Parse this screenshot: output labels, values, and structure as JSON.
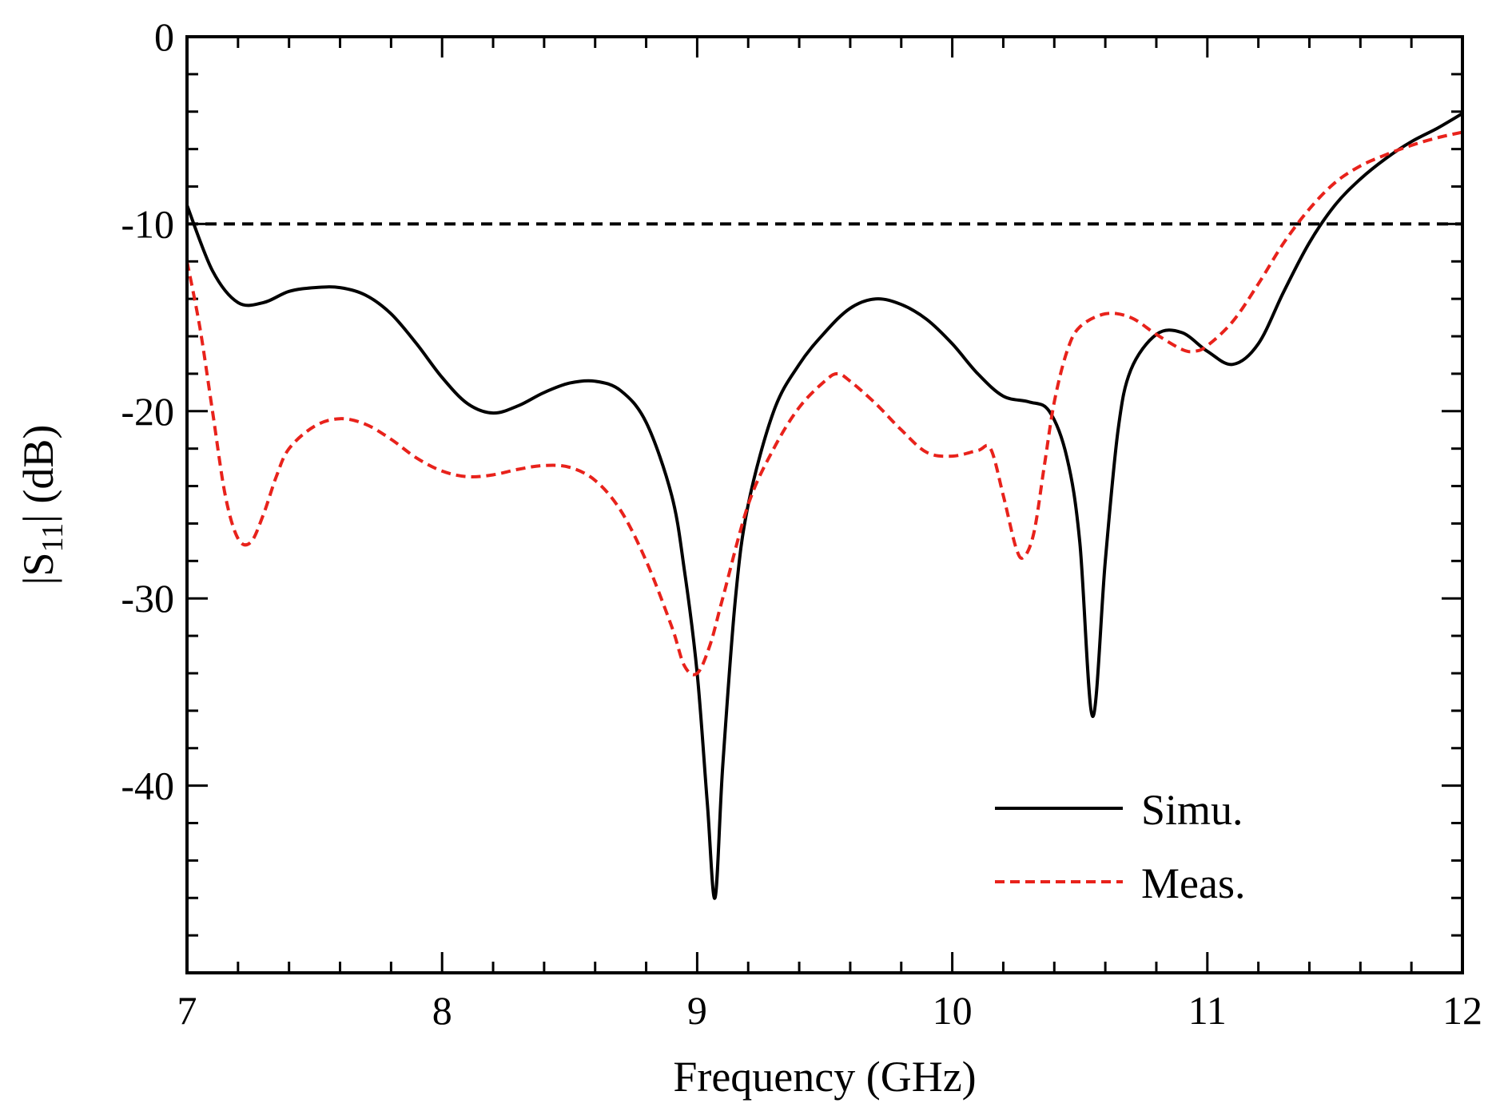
{
  "chart_data": {
    "type": "line",
    "title": "",
    "xlabel": "Frequency (GHz)",
    "ylabel": {
      "prefix": "|S",
      "subscript": "11",
      "suffix": "| (dB)"
    },
    "xlim": [
      7,
      12
    ],
    "ylim": [
      -50,
      0
    ],
    "xticks": [
      7,
      8,
      9,
      10,
      11,
      12
    ],
    "yticks": [
      0,
      -10,
      -20,
      -30,
      -40
    ],
    "xtick_labels": [
      "7",
      "8",
      "9",
      "10",
      "11",
      "12"
    ],
    "ytick_labels": [
      "0",
      "-10",
      "-20",
      "-30",
      "-40"
    ],
    "grid": false,
    "legend_position": "bottom-right",
    "reference_line": {
      "y": -10,
      "color": "#000000",
      "style": "dashed"
    },
    "series": [
      {
        "name": "Simu.",
        "color": "#000000",
        "style": "solid",
        "points": [
          [
            7.0,
            -9.0
          ],
          [
            7.1,
            -12.5
          ],
          [
            7.2,
            -14.2
          ],
          [
            7.3,
            -14.2
          ],
          [
            7.4,
            -13.6
          ],
          [
            7.5,
            -13.4
          ],
          [
            7.6,
            -13.4
          ],
          [
            7.7,
            -13.8
          ],
          [
            7.8,
            -14.8
          ],
          [
            7.9,
            -16.4
          ],
          [
            8.0,
            -18.2
          ],
          [
            8.1,
            -19.6
          ],
          [
            8.2,
            -20.1
          ],
          [
            8.3,
            -19.7
          ],
          [
            8.4,
            -19.0
          ],
          [
            8.5,
            -18.5
          ],
          [
            8.6,
            -18.4
          ],
          [
            8.7,
            -18.9
          ],
          [
            8.8,
            -20.6
          ],
          [
            8.9,
            -24.5
          ],
          [
            8.95,
            -28.5
          ],
          [
            9.0,
            -34.0
          ],
          [
            9.04,
            -41.0
          ],
          [
            9.07,
            -46.0
          ],
          [
            9.1,
            -39.0
          ],
          [
            9.15,
            -30.0
          ],
          [
            9.2,
            -25.0
          ],
          [
            9.3,
            -20.0
          ],
          [
            9.4,
            -17.5
          ],
          [
            9.5,
            -15.8
          ],
          [
            9.6,
            -14.5
          ],
          [
            9.7,
            -14.0
          ],
          [
            9.8,
            -14.3
          ],
          [
            9.9,
            -15.1
          ],
          [
            10.0,
            -16.4
          ],
          [
            10.1,
            -18.0
          ],
          [
            10.2,
            -19.2
          ],
          [
            10.3,
            -19.5
          ],
          [
            10.38,
            -20.0
          ],
          [
            10.45,
            -22.5
          ],
          [
            10.5,
            -27.0
          ],
          [
            10.55,
            -36.3
          ],
          [
            10.6,
            -28.0
          ],
          [
            10.65,
            -21.0
          ],
          [
            10.7,
            -17.8
          ],
          [
            10.8,
            -15.9
          ],
          [
            10.9,
            -15.8
          ],
          [
            11.0,
            -16.8
          ],
          [
            11.1,
            -17.5
          ],
          [
            11.2,
            -16.4
          ],
          [
            11.3,
            -13.6
          ],
          [
            11.4,
            -11.0
          ],
          [
            11.5,
            -9.0
          ],
          [
            11.6,
            -7.6
          ],
          [
            11.7,
            -6.5
          ],
          [
            11.8,
            -5.6
          ],
          [
            11.9,
            -4.9
          ],
          [
            12.0,
            -4.1
          ]
        ]
      },
      {
        "name": "Meas.",
        "color": "#e8221b",
        "style": "dashed",
        "points": [
          [
            7.0,
            -12.0
          ],
          [
            7.05,
            -15.5
          ],
          [
            7.1,
            -20.0
          ],
          [
            7.15,
            -24.5
          ],
          [
            7.2,
            -26.8
          ],
          [
            7.25,
            -27.0
          ],
          [
            7.3,
            -25.5
          ],
          [
            7.35,
            -23.5
          ],
          [
            7.4,
            -22.0
          ],
          [
            7.5,
            -20.8
          ],
          [
            7.6,
            -20.4
          ],
          [
            7.7,
            -20.7
          ],
          [
            7.8,
            -21.5
          ],
          [
            7.9,
            -22.5
          ],
          [
            8.0,
            -23.2
          ],
          [
            8.1,
            -23.5
          ],
          [
            8.2,
            -23.4
          ],
          [
            8.3,
            -23.1
          ],
          [
            8.4,
            -22.9
          ],
          [
            8.5,
            -23.0
          ],
          [
            8.6,
            -23.7
          ],
          [
            8.7,
            -25.3
          ],
          [
            8.8,
            -28.0
          ],
          [
            8.9,
            -31.5
          ],
          [
            8.95,
            -33.6
          ],
          [
            9.0,
            -34.0
          ],
          [
            9.05,
            -32.5
          ],
          [
            9.1,
            -30.0
          ],
          [
            9.2,
            -25.0
          ],
          [
            9.3,
            -22.0
          ],
          [
            9.4,
            -19.8
          ],
          [
            9.5,
            -18.4
          ],
          [
            9.55,
            -18.0
          ],
          [
            9.6,
            -18.4
          ],
          [
            9.7,
            -19.6
          ],
          [
            9.8,
            -21.0
          ],
          [
            9.9,
            -22.2
          ],
          [
            10.0,
            -22.4
          ],
          [
            10.1,
            -22.1
          ],
          [
            10.15,
            -22.0
          ],
          [
            10.2,
            -24.5
          ],
          [
            10.25,
            -27.3
          ],
          [
            10.28,
            -27.8
          ],
          [
            10.32,
            -26.5
          ],
          [
            10.36,
            -23.0
          ],
          [
            10.4,
            -19.5
          ],
          [
            10.45,
            -16.8
          ],
          [
            10.5,
            -15.5
          ],
          [
            10.6,
            -14.8
          ],
          [
            10.7,
            -15.0
          ],
          [
            10.8,
            -15.9
          ],
          [
            10.9,
            -16.7
          ],
          [
            10.95,
            -16.8
          ],
          [
            11.0,
            -16.5
          ],
          [
            11.1,
            -15.2
          ],
          [
            11.2,
            -13.2
          ],
          [
            11.3,
            -11.0
          ],
          [
            11.4,
            -9.2
          ],
          [
            11.5,
            -7.8
          ],
          [
            11.6,
            -6.9
          ],
          [
            11.7,
            -6.3
          ],
          [
            11.8,
            -5.8
          ],
          [
            11.9,
            -5.4
          ],
          [
            12.0,
            -5.1
          ]
        ]
      }
    ]
  }
}
